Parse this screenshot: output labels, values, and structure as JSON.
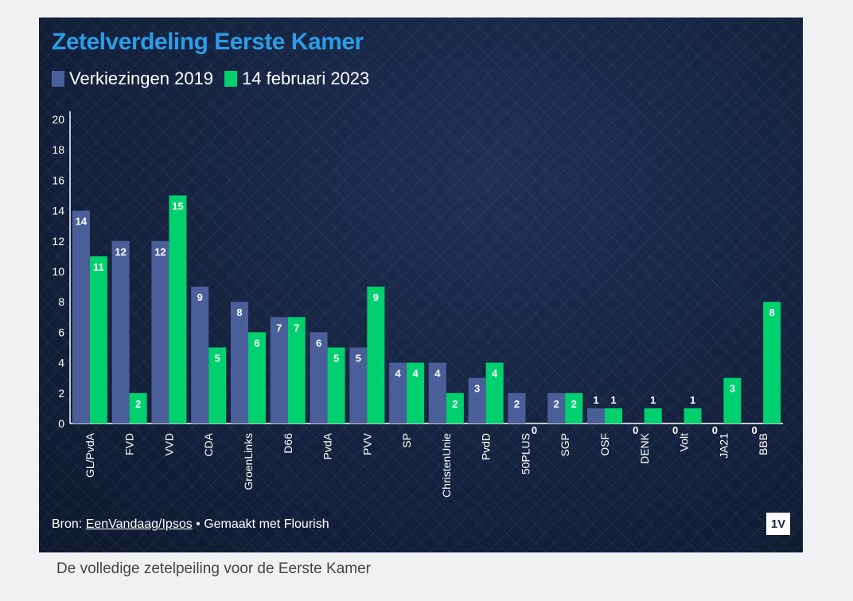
{
  "card": {
    "title": "Zetelverdeling Eerste Kamer",
    "source_prefix": "Bron: ",
    "source_link": "EenVandaag/Ipsos",
    "source_suffix": " • Gemaakt met Flourish",
    "logo_text": "1V"
  },
  "caption": "De volledige zetelpeiling voor de Eerste Kamer",
  "colors": {
    "series_2019": "#4a5f99",
    "series_2023": "#00d16e",
    "title": "#2a9de6",
    "background": "#15223f"
  },
  "chart_data": {
    "type": "bar",
    "title": "Zetelverdeling Eerste Kamer",
    "categories": [
      "GL/PvdA",
      "FVD",
      "VVD",
      "CDA",
      "GroenLinks",
      "D66",
      "PvdA",
      "PVV",
      "SP",
      "ChristenUnie",
      "PvdD",
      "50PLUS",
      "SGP",
      "OSF",
      "DENK",
      "Volt",
      "JA21",
      "BBB"
    ],
    "series": [
      {
        "name": "Verkiezingen 2019",
        "values": [
          14,
          12,
          12,
          9,
          8,
          7,
          6,
          5,
          4,
          4,
          3,
          2,
          2,
          1,
          0,
          0,
          0,
          0
        ]
      },
      {
        "name": "14 februari 2023",
        "values": [
          11,
          2,
          15,
          5,
          6,
          7,
          5,
          9,
          4,
          2,
          4,
          0,
          2,
          1,
          1,
          1,
          3,
          8
        ]
      }
    ],
    "ylim": [
      0,
      20
    ],
    "yticks": [
      0,
      2,
      4,
      6,
      8,
      10,
      12,
      14,
      16,
      18,
      20
    ],
    "xlabel": "",
    "ylabel": "",
    "legend_position": "top-left",
    "grid": false
  }
}
